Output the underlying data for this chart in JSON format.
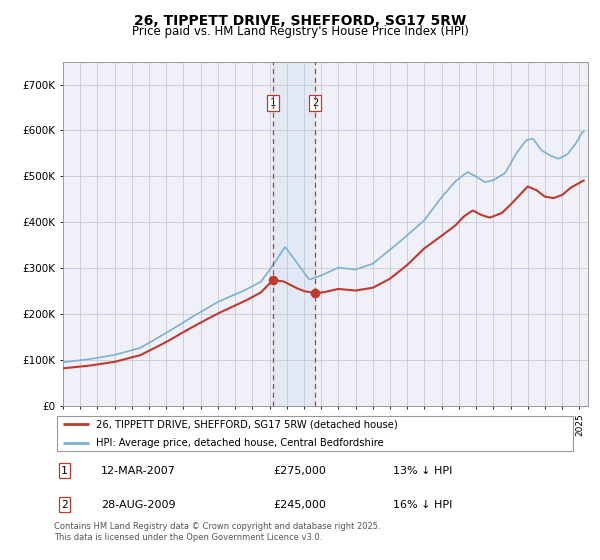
{
  "title": "26, TIPPETT DRIVE, SHEFFORD, SG17 5RW",
  "subtitle": "Price paid vs. HM Land Registry's House Price Index (HPI)",
  "title_fontsize": 10,
  "subtitle_fontsize": 8.5,
  "ylim": [
    0,
    750000
  ],
  "yticks": [
    0,
    100000,
    200000,
    300000,
    400000,
    500000,
    600000,
    700000
  ],
  "ytick_labels": [
    "£0",
    "£100K",
    "£200K",
    "£300K",
    "£400K",
    "£500K",
    "£600K",
    "£700K"
  ],
  "hpi_color": "#7ab0d4",
  "price_color": "#c0392b",
  "sale1_date": 2007.19,
  "sale1_price": 275000,
  "sale2_date": 2009.65,
  "sale2_price": 245000,
  "sale1_label": "12-MAR-2007",
  "sale2_label": "28-AUG-2009",
  "sale1_hpi_pct": "13% ↓ HPI",
  "sale2_hpi_pct": "16% ↓ HPI",
  "legend_label1": "26, TIPPETT DRIVE, SHEFFORD, SG17 5RW (detached house)",
  "legend_label2": "HPI: Average price, detached house, Central Bedfordshire",
  "footer1": "Contains HM Land Registry data © Crown copyright and database right 2025.",
  "footer2": "This data is licensed under the Open Government Licence v3.0.",
  "background_color": "#f0f0f8",
  "grid_color": "#c8c8d8",
  "shade_color": "#c8ddf0",
  "hpi_waypoints_x": [
    1995.0,
    1996.5,
    1998.0,
    1999.5,
    2001.0,
    2002.5,
    2004.0,
    2005.5,
    2006.5,
    2007.2,
    2007.9,
    2008.5,
    2009.3,
    2010.0,
    2011.0,
    2012.0,
    2013.0,
    2014.0,
    2015.0,
    2016.0,
    2017.0,
    2017.8,
    2018.5,
    2019.0,
    2019.5,
    2020.0,
    2020.7,
    2021.3,
    2021.9,
    2022.3,
    2022.8,
    2023.3,
    2023.8,
    2024.3,
    2024.8,
    2025.2
  ],
  "hpi_waypoints_y": [
    95000,
    102000,
    112000,
    128000,
    160000,
    195000,
    228000,
    252000,
    272000,
    308000,
    348000,
    318000,
    276000,
    285000,
    302000,
    298000,
    310000,
    340000,
    372000,
    405000,
    455000,
    490000,
    510000,
    500000,
    488000,
    492000,
    508000,
    548000,
    578000,
    582000,
    556000,
    545000,
    538000,
    548000,
    572000,
    598000
  ],
  "price_waypoints_x": [
    1995.0,
    1996.5,
    1998.0,
    1999.5,
    2001.0,
    2002.5,
    2004.0,
    2005.5,
    2006.5,
    2007.19,
    2007.8,
    2008.5,
    2009.0,
    2009.65,
    2010.2,
    2011.0,
    2012.0,
    2013.0,
    2014.0,
    2015.0,
    2016.0,
    2017.0,
    2017.8,
    2018.3,
    2018.8,
    2019.3,
    2019.8,
    2020.5,
    2021.0,
    2021.5,
    2022.0,
    2022.5,
    2023.0,
    2023.5,
    2024.0,
    2024.5,
    2025.2
  ],
  "price_waypoints_y": [
    82000,
    88000,
    97000,
    112000,
    140000,
    172000,
    202000,
    228000,
    248000,
    275000,
    272000,
    258000,
    250000,
    245000,
    248000,
    255000,
    252000,
    258000,
    278000,
    308000,
    345000,
    372000,
    395000,
    415000,
    428000,
    418000,
    412000,
    422000,
    440000,
    460000,
    480000,
    472000,
    458000,
    455000,
    462000,
    478000,
    492000
  ]
}
